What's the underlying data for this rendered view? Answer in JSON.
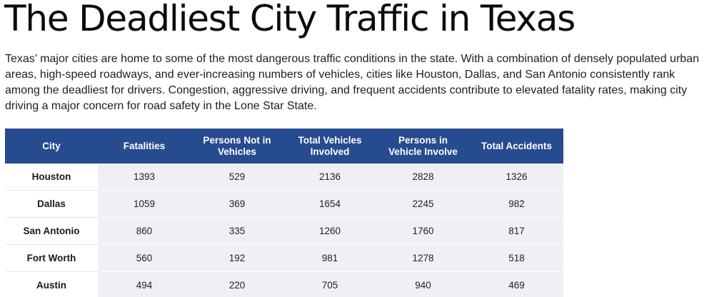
{
  "page": {
    "title": "The Deadliest City Traffic in Texas",
    "intro": "Texas’ major cities are home to some of the most dangerous traffic conditions in the state. With a combination of densely populated urban areas, high-speed roadways, and ever-increasing numbers of vehicles, cities like Houston, Dallas, and San Antonio consistently rank among the deadliest for drivers. Congestion, aggressive driving, and frequent accidents contribute to elevated fatality rates, making city driving a major concern for road safety in the Lone Star State."
  },
  "table": {
    "headers": [
      "City",
      "Fatalities",
      "Persons Not in Vehicles",
      "Total Vehicles Involved",
      "Persons in Vehicle Involve",
      "Total Accidents"
    ],
    "rows": [
      [
        "Houston",
        "1393",
        "529",
        "2136",
        "2828",
        "1326"
      ],
      [
        "Dallas",
        "1059",
        "369",
        "1654",
        "2245",
        "982"
      ],
      [
        "San Antonio",
        "860",
        "335",
        "1260",
        "1760",
        "817"
      ],
      [
        "Fort Worth",
        "560",
        "192",
        "981",
        "1278",
        "518"
      ],
      [
        "Austin",
        "494",
        "220",
        "705",
        "940",
        "469"
      ]
    ]
  },
  "colors": {
    "header_background": "#264b8f",
    "header_text": "#ffffff",
    "cell_background": "#eef0f3"
  }
}
